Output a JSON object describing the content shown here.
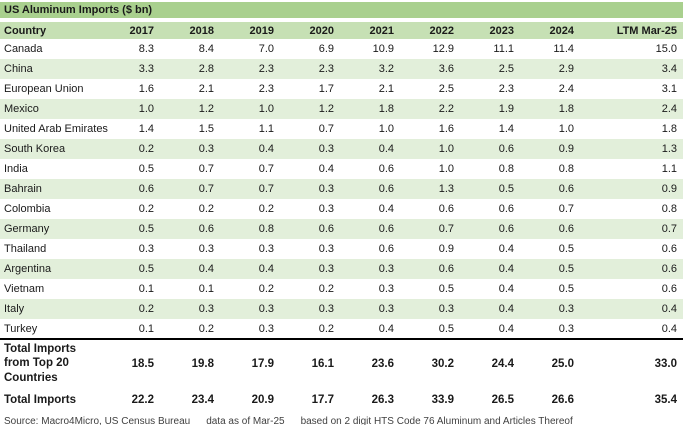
{
  "title": "US Aluminum Imports ($ bn)",
  "footer": {
    "source": "Source: Macro4Micro, US Census Bureau",
    "as_of": "data as of Mar-25",
    "basis": "based on 2 digit HTS Code 76 Aluminum and Articles Thereof"
  },
  "colors": {
    "title_bar": "#a9d08e",
    "header_row": "#c6e0b4",
    "stripe_row": "#e2efda"
  },
  "chart_data": {
    "type": "table",
    "title": "US Aluminum Imports ($ bn)",
    "columns": [
      "Country",
      "2017",
      "2018",
      "2019",
      "2020",
      "2021",
      "2022",
      "2023",
      "2024",
      "LTM Mar-25"
    ],
    "rows": [
      {
        "country": "Canada",
        "values": [
          "8.3",
          "8.4",
          "7.0",
          "6.9",
          "10.9",
          "12.9",
          "11.1",
          "11.4",
          "15.0"
        ]
      },
      {
        "country": "China",
        "values": [
          "3.3",
          "2.8",
          "2.3",
          "2.3",
          "3.2",
          "3.6",
          "2.5",
          "2.9",
          "3.4"
        ]
      },
      {
        "country": "European Union",
        "values": [
          "1.6",
          "2.1",
          "2.3",
          "1.7",
          "2.1",
          "2.5",
          "2.3",
          "2.4",
          "3.1"
        ]
      },
      {
        "country": "Mexico",
        "values": [
          "1.0",
          "1.2",
          "1.0",
          "1.2",
          "1.8",
          "2.2",
          "1.9",
          "1.8",
          "2.4"
        ]
      },
      {
        "country": "United Arab Emirates",
        "values": [
          "1.4",
          "1.5",
          "1.1",
          "0.7",
          "1.0",
          "1.6",
          "1.4",
          "1.0",
          "1.8"
        ]
      },
      {
        "country": "South Korea",
        "values": [
          "0.2",
          "0.3",
          "0.4",
          "0.3",
          "0.4",
          "1.0",
          "0.6",
          "0.9",
          "1.3"
        ]
      },
      {
        "country": "India",
        "values": [
          "0.5",
          "0.7",
          "0.7",
          "0.4",
          "0.6",
          "1.0",
          "0.8",
          "0.8",
          "1.1"
        ]
      },
      {
        "country": "Bahrain",
        "values": [
          "0.6",
          "0.7",
          "0.7",
          "0.3",
          "0.6",
          "1.3",
          "0.5",
          "0.6",
          "0.9"
        ]
      },
      {
        "country": "Colombia",
        "values": [
          "0.2",
          "0.2",
          "0.2",
          "0.3",
          "0.4",
          "0.6",
          "0.6",
          "0.7",
          "0.8"
        ]
      },
      {
        "country": "Germany",
        "values": [
          "0.5",
          "0.6",
          "0.8",
          "0.6",
          "0.6",
          "0.7",
          "0.6",
          "0.6",
          "0.7"
        ]
      },
      {
        "country": "Thailand",
        "values": [
          "0.3",
          "0.3",
          "0.3",
          "0.3",
          "0.6",
          "0.9",
          "0.4",
          "0.5",
          "0.6"
        ]
      },
      {
        "country": "Argentina",
        "values": [
          "0.5",
          "0.4",
          "0.4",
          "0.3",
          "0.3",
          "0.6",
          "0.4",
          "0.5",
          "0.6"
        ]
      },
      {
        "country": "Vietnam",
        "values": [
          "0.1",
          "0.1",
          "0.2",
          "0.2",
          "0.3",
          "0.5",
          "0.4",
          "0.5",
          "0.6"
        ]
      },
      {
        "country": "Italy",
        "values": [
          "0.2",
          "0.3",
          "0.3",
          "0.3",
          "0.3",
          "0.3",
          "0.4",
          "0.3",
          "0.4"
        ]
      },
      {
        "country": "Turkey",
        "values": [
          "0.1",
          "0.2",
          "0.3",
          "0.2",
          "0.4",
          "0.5",
          "0.4",
          "0.3",
          "0.4"
        ]
      }
    ],
    "totals": [
      {
        "label": "Total Imports from Top 20 Countries",
        "values": [
          "18.5",
          "19.8",
          "17.9",
          "16.1",
          "23.6",
          "30.2",
          "24.4",
          "25.0",
          "33.0"
        ]
      },
      {
        "label": "Total Imports",
        "values": [
          "22.2",
          "23.4",
          "20.9",
          "17.7",
          "26.3",
          "33.9",
          "26.5",
          "26.6",
          "35.4"
        ]
      }
    ]
  }
}
